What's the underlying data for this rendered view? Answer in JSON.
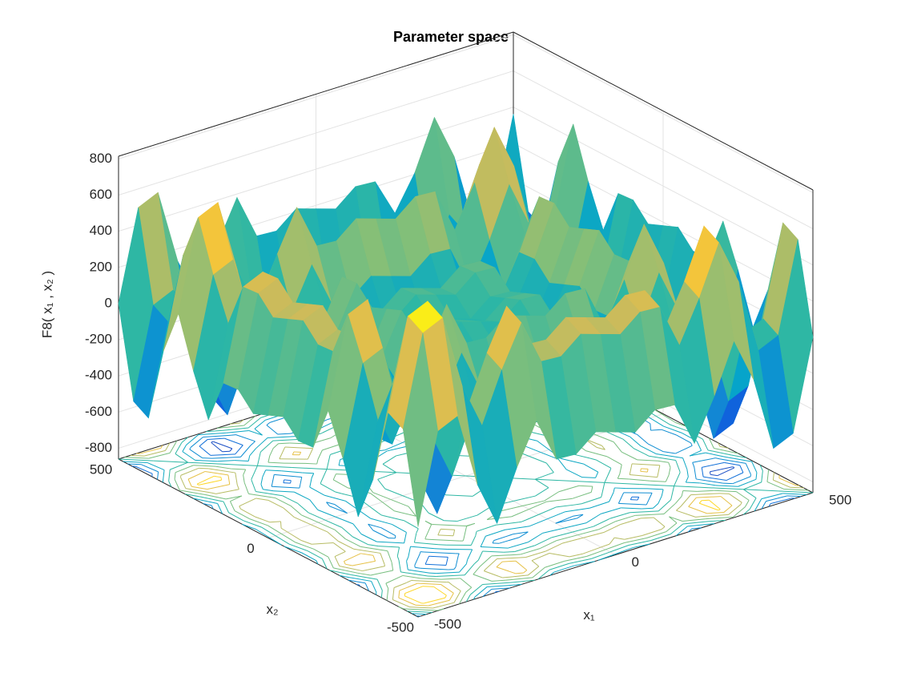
{
  "chart_data": {
    "type": "surface",
    "title": "Parameter space",
    "xlabel": "x₁",
    "ylabel": "x₂",
    "zlabel": "F8( x₁ , x₂ )",
    "x": [
      -500,
      -450,
      -400,
      -350,
      -300,
      -250,
      -200,
      -150,
      -100,
      -50,
      0,
      50,
      100,
      150,
      200,
      250,
      300,
      350,
      400,
      450,
      500
    ],
    "y": [
      -500,
      -450,
      -400,
      -350,
      -300,
      -250,
      -200,
      -150,
      -100,
      -50,
      0,
      50,
      100,
      150,
      200,
      250,
      300,
      350,
      400,
      450,
      500
    ],
    "z": [
      [
        -362,
        135,
        184,
        -230,
        -481,
        -207,
        19,
        -228,
        -235,
        -146,
        -181,
        -216,
        -127,
        -134,
        -381,
        -155,
        119,
        -132,
        -546,
        -497,
        0
      ],
      [
        135,
        632,
        681,
        267,
        16,
        290,
        516,
        269,
        262,
        351,
        316,
        281,
        370,
        363,
        116,
        342,
        616,
        365,
        -49,
        0,
        497
      ],
      [
        184,
        681,
        730,
        316,
        65,
        339,
        565,
        318,
        311,
        400,
        365,
        330,
        419,
        412,
        165,
        391,
        665,
        414,
        0,
        49,
        546
      ],
      [
        -230,
        267,
        316,
        -98,
        -349,
        -75,
        151,
        -96,
        -103,
        -14,
        -49,
        -84,
        5,
        -2,
        -249,
        -23,
        251,
        0,
        -414,
        -365,
        132
      ],
      [
        -481,
        16,
        65,
        -349,
        -600,
        -326,
        -100,
        -347,
        -354,
        -265,
        -300,
        -335,
        -246,
        -253,
        -500,
        -274,
        0,
        -251,
        -665,
        -616,
        -119
      ],
      [
        -207,
        290,
        339,
        -75,
        -326,
        -52,
        174,
        -73,
        -80,
        9,
        -26,
        -61,
        28,
        21,
        -226,
        0,
        274,
        23,
        -391,
        -342,
        155
      ],
      [
        19,
        516,
        565,
        151,
        -100,
        174,
        400,
        153,
        146,
        235,
        200,
        165,
        254,
        247,
        0,
        226,
        500,
        249,
        -165,
        -116,
        381
      ],
      [
        -228,
        269,
        318,
        -96,
        -347,
        -73,
        153,
        -94,
        -101,
        -12,
        -47,
        -82,
        7,
        0,
        -247,
        -21,
        253,
        2,
        -412,
        -363,
        134
      ],
      [
        -235,
        262,
        311,
        -103,
        -354,
        -80,
        146,
        -101,
        -108,
        -19,
        -54,
        -89,
        0,
        -7,
        -254,
        -28,
        246,
        -5,
        -419,
        -370,
        127
      ],
      [
        -146,
        351,
        400,
        -14,
        -265,
        9,
        235,
        -12,
        -19,
        70,
        35,
        0,
        89,
        82,
        -165,
        61,
        335,
        84,
        -330,
        -281,
        216
      ],
      [
        -181,
        316,
        365,
        -49,
        -300,
        -26,
        200,
        -47,
        -54,
        35,
        0,
        -35,
        54,
        47,
        -200,
        26,
        300,
        49,
        -365,
        -316,
        181
      ],
      [
        -216,
        281,
        330,
        -84,
        -335,
        -61,
        165,
        -82,
        -89,
        0,
        -35,
        -70,
        19,
        12,
        -235,
        -9,
        265,
        14,
        -400,
        -351,
        146
      ],
      [
        -127,
        370,
        419,
        5,
        -246,
        28,
        254,
        7,
        0,
        89,
        54,
        19,
        108,
        101,
        -146,
        80,
        354,
        103,
        -311,
        -262,
        235
      ],
      [
        -134,
        363,
        412,
        -2,
        -253,
        21,
        247,
        0,
        -7,
        82,
        47,
        12,
        101,
        94,
        -153,
        73,
        347,
        96,
        -318,
        -269,
        228
      ],
      [
        -381,
        116,
        165,
        -249,
        -500,
        -226,
        0,
        -247,
        -254,
        -165,
        -200,
        -235,
        -146,
        -153,
        -400,
        -174,
        100,
        -151,
        -565,
        -516,
        -19
      ],
      [
        -155,
        342,
        391,
        -23,
        -274,
        0,
        226,
        -21,
        -28,
        61,
        26,
        -9,
        80,
        73,
        -174,
        52,
        326,
        75,
        -339,
        -290,
        207
      ],
      [
        119,
        616,
        665,
        251,
        0,
        274,
        500,
        253,
        246,
        335,
        300,
        265,
        354,
        347,
        100,
        326,
        600,
        349,
        -65,
        -16,
        481
      ],
      [
        -132,
        365,
        414,
        0,
        -251,
        23,
        249,
        2,
        -5,
        84,
        49,
        14,
        103,
        96,
        -151,
        75,
        349,
        98,
        -316,
        -267,
        230
      ],
      [
        -546,
        -49,
        0,
        -414,
        -665,
        -391,
        -165,
        -412,
        -419,
        -330,
        -365,
        -400,
        -311,
        -318,
        -565,
        -339,
        -65,
        -316,
        -730,
        -681,
        -184
      ],
      [
        -497,
        0,
        49,
        -365,
        -616,
        -342,
        -116,
        -363,
        -370,
        -281,
        -316,
        -351,
        -262,
        -269,
        -516,
        -290,
        -16,
        -267,
        -681,
        -632,
        -135
      ],
      [
        0,
        497,
        546,
        132,
        -119,
        155,
        381,
        134,
        127,
        216,
        181,
        146,
        235,
        228,
        19,
        207,
        481,
        230,
        -184,
        -135,
        362
      ]
    ],
    "xlim": [
      -500,
      500
    ],
    "ylim": [
      -500,
      500
    ],
    "zlim": [
      -860,
      815
    ],
    "xticks": [
      -500,
      0,
      500
    ],
    "yticks": [
      -500,
      0,
      500
    ],
    "zticks": [
      -800,
      -600,
      -400,
      -200,
      0,
      200,
      400,
      600,
      800
    ],
    "grid": true,
    "colormap": [
      "#352a87",
      "#0f5cdd",
      "#1481d6",
      "#06a4ca",
      "#2eb7a4",
      "#87bf77",
      "#d1bb59",
      "#fec832",
      "#f9fb0e"
    ],
    "contour_levels": [
      -600,
      -450,
      -300,
      -150,
      0,
      150,
      300,
      450,
      600
    ]
  }
}
